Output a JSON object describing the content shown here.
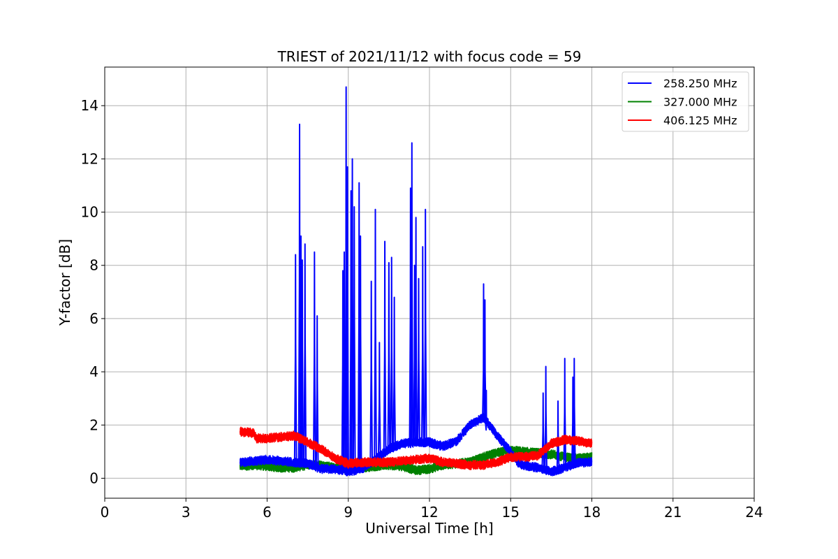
{
  "chart_data": {
    "type": "line",
    "title": "TRIEST of 2021/11/12 with focus code = 59",
    "xlabel": "Universal Time [h]",
    "ylabel": "Y-factor [dB]",
    "xlim": [
      0,
      24
    ],
    "ylim": [
      -0.75,
      15.45
    ],
    "xticks": [
      0,
      3,
      6,
      9,
      12,
      15,
      18,
      21,
      24
    ],
    "yticks": [
      0,
      2,
      4,
      6,
      8,
      10,
      12,
      14
    ],
    "grid": true,
    "legend_position": "top-right",
    "series": [
      {
        "name": "258.250 MHz",
        "color": "#0000ff",
        "baseline": [
          [
            5.0,
            0.6
          ],
          [
            5.5,
            0.65
          ],
          [
            6.0,
            0.7
          ],
          [
            6.5,
            0.65
          ],
          [
            7.0,
            0.6
          ],
          [
            7.5,
            0.55
          ],
          [
            8.0,
            0.35
          ],
          [
            8.5,
            0.35
          ],
          [
            9.0,
            0.25
          ],
          [
            9.5,
            0.35
          ],
          [
            10.0,
            0.7
          ],
          [
            10.5,
            1.1
          ],
          [
            11.0,
            1.3
          ],
          [
            11.5,
            1.35
          ],
          [
            12.0,
            1.35
          ],
          [
            12.5,
            1.2
          ],
          [
            13.0,
            1.4
          ],
          [
            13.5,
            2.0
          ],
          [
            14.0,
            2.3
          ],
          [
            14.5,
            1.6
          ],
          [
            15.0,
            1.0
          ],
          [
            15.3,
            0.55
          ],
          [
            15.7,
            0.45
          ],
          [
            16.0,
            0.4
          ],
          [
            16.5,
            0.25
          ],
          [
            17.0,
            0.4
          ],
          [
            17.5,
            0.6
          ],
          [
            18.0,
            0.6
          ]
        ],
        "peaks": [
          [
            7.05,
            8.4
          ],
          [
            7.2,
            13.3
          ],
          [
            7.25,
            9.1
          ],
          [
            7.3,
            8.2
          ],
          [
            7.4,
            8.8
          ],
          [
            7.75,
            8.5
          ],
          [
            7.85,
            6.1
          ],
          [
            8.8,
            7.8
          ],
          [
            8.85,
            8.5
          ],
          [
            8.92,
            14.7
          ],
          [
            8.97,
            11.7
          ],
          [
            9.1,
            10.8
          ],
          [
            9.15,
            12.0
          ],
          [
            9.22,
            10.2
          ],
          [
            9.4,
            11.1
          ],
          [
            9.45,
            9.1
          ],
          [
            9.85,
            7.4
          ],
          [
            10.0,
            10.1
          ],
          [
            10.15,
            5.1
          ],
          [
            10.35,
            8.9
          ],
          [
            10.5,
            8.1
          ],
          [
            10.6,
            8.3
          ],
          [
            10.7,
            6.8
          ],
          [
            11.3,
            10.9
          ],
          [
            11.35,
            12.6
          ],
          [
            11.45,
            8.0
          ],
          [
            11.5,
            9.8
          ],
          [
            11.6,
            7.5
          ],
          [
            11.75,
            8.7
          ],
          [
            11.85,
            10.1
          ],
          [
            14.0,
            7.3
          ],
          [
            14.05,
            6.7
          ],
          [
            14.1,
            3.3
          ],
          [
            16.2,
            3.2
          ],
          [
            16.3,
            4.2
          ],
          [
            16.75,
            2.9
          ],
          [
            17.0,
            4.5
          ],
          [
            17.3,
            3.8
          ],
          [
            17.35,
            4.5
          ]
        ]
      },
      {
        "name": "327.000 MHz",
        "color": "#008000",
        "baseline": [
          [
            5.0,
            0.45
          ],
          [
            5.5,
            0.5
          ],
          [
            6.0,
            0.45
          ],
          [
            6.5,
            0.4
          ],
          [
            7.0,
            0.4
          ],
          [
            7.5,
            0.5
          ],
          [
            8.0,
            0.5
          ],
          [
            8.5,
            0.4
          ],
          [
            9.0,
            0.35
          ],
          [
            9.5,
            0.4
          ],
          [
            10.0,
            0.45
          ],
          [
            10.5,
            0.5
          ],
          [
            11.0,
            0.45
          ],
          [
            11.5,
            0.3
          ],
          [
            12.0,
            0.35
          ],
          [
            12.5,
            0.5
          ],
          [
            13.0,
            0.55
          ],
          [
            13.5,
            0.6
          ],
          [
            14.0,
            0.8
          ],
          [
            14.5,
            0.95
          ],
          [
            15.0,
            1.05
          ],
          [
            15.5,
            1.0
          ],
          [
            16.0,
            0.95
          ],
          [
            16.5,
            0.9
          ],
          [
            17.0,
            0.8
          ],
          [
            17.5,
            0.75
          ],
          [
            18.0,
            0.8
          ]
        ],
        "peaks": []
      },
      {
        "name": "406.125 MHz",
        "color": "#ff0000",
        "baseline": [
          [
            5.0,
            1.75
          ],
          [
            5.5,
            1.7
          ],
          [
            5.6,
            1.5
          ],
          [
            6.0,
            1.5
          ],
          [
            6.5,
            1.55
          ],
          [
            7.0,
            1.6
          ],
          [
            7.5,
            1.35
          ],
          [
            8.0,
            1.1
          ],
          [
            8.5,
            0.75
          ],
          [
            9.0,
            0.55
          ],
          [
            9.5,
            0.6
          ],
          [
            10.0,
            0.6
          ],
          [
            10.5,
            0.6
          ],
          [
            11.0,
            0.65
          ],
          [
            11.5,
            0.7
          ],
          [
            12.0,
            0.75
          ],
          [
            12.5,
            0.6
          ],
          [
            13.0,
            0.55
          ],
          [
            13.5,
            0.5
          ],
          [
            14.0,
            0.5
          ],
          [
            14.5,
            0.6
          ],
          [
            15.0,
            0.8
          ],
          [
            15.5,
            0.8
          ],
          [
            16.0,
            0.85
          ],
          [
            16.5,
            1.3
          ],
          [
            17.0,
            1.45
          ],
          [
            17.5,
            1.4
          ],
          [
            18.0,
            1.3
          ]
        ],
        "peaks": []
      }
    ]
  }
}
